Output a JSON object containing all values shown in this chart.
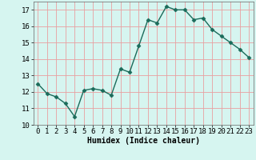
{
  "x": [
    0,
    1,
    2,
    3,
    4,
    5,
    6,
    7,
    8,
    9,
    10,
    11,
    12,
    13,
    14,
    15,
    16,
    17,
    18,
    19,
    20,
    21,
    22,
    23
  ],
  "y": [
    12.5,
    11.9,
    11.7,
    11.3,
    10.5,
    12.1,
    12.2,
    12.1,
    11.8,
    13.4,
    13.2,
    14.8,
    16.4,
    16.2,
    17.2,
    17.0,
    17.0,
    16.4,
    16.5,
    15.8,
    15.4,
    15.0,
    14.6,
    14.1
  ],
  "line_color": "#1a6b5a",
  "marker": "D",
  "markersize": 2.5,
  "linewidth": 1.0,
  "bg_color": "#d6f5f0",
  "grid_color": "#e8a0a0",
  "xlabel": "Humidex (Indice chaleur)",
  "xlabel_fontsize": 7,
  "tick_fontsize": 6.5,
  "ylim": [
    10,
    17.5
  ],
  "xlim": [
    -0.5,
    23.5
  ],
  "yticks": [
    10,
    11,
    12,
    13,
    14,
    15,
    16,
    17
  ],
  "xticks": [
    0,
    1,
    2,
    3,
    4,
    5,
    6,
    7,
    8,
    9,
    10,
    11,
    12,
    13,
    14,
    15,
    16,
    17,
    18,
    19,
    20,
    21,
    22,
    23
  ]
}
